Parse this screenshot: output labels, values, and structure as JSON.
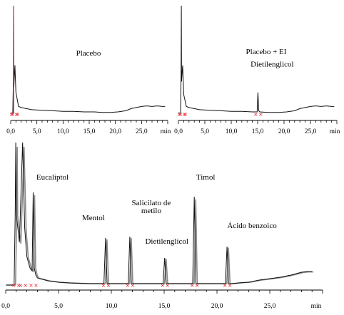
{
  "chart_data": [
    {
      "type": "line",
      "title": "Placebo",
      "xlabel": "min",
      "xlim": [
        0,
        30
      ],
      "xticks": [
        "0,0",
        "5,0",
        "10,0",
        "15,0",
        "20,0",
        "25,0"
      ],
      "series": [
        {
          "x": [
            0.0,
            0.4,
            0.5,
            0.55,
            0.6,
            0.8,
            1.0,
            1.5,
            2.0,
            3.0,
            4.0,
            6.0,
            8.0,
            10.0,
            12.0,
            14.0,
            16.0,
            17.5,
            19.0,
            20.5,
            22.0,
            23.0,
            24.0,
            25.0,
            26.0,
            27.0,
            28.0,
            29.0,
            29.5
          ],
          "y": [
            0.01,
            0.01,
            0.3,
            1.0,
            0.25,
            0.45,
            0.2,
            0.07,
            0.06,
            0.05,
            0.04,
            0.035,
            0.03,
            0.025,
            0.025,
            0.02,
            0.02,
            0.015,
            0.015,
            0.02,
            0.03,
            0.05,
            0.06,
            0.07,
            0.075,
            0.07,
            0.075,
            0.07,
            0.07
          ]
        }
      ],
      "annotations": []
    },
    {
      "type": "line",
      "title": "Placebo + EI",
      "xlabel": "min",
      "xlim": [
        0,
        30
      ],
      "xticks": [
        "0,0",
        "5,0",
        "10,0",
        "15,0",
        "20,0",
        "25,0"
      ],
      "series": [
        {
          "x": [
            0.0,
            0.4,
            0.5,
            0.55,
            0.6,
            0.8,
            1.0,
            1.5,
            2.0,
            3.0,
            4.0,
            6.0,
            8.0,
            10.0,
            12.0,
            14.0,
            14.9,
            15.05,
            15.2,
            15.4,
            17.0,
            19.0,
            20.5,
            22.0,
            23.0,
            24.0,
            25.0,
            26.0,
            27.0,
            28.0,
            29.0,
            29.5
          ],
          "y": [
            0.01,
            0.01,
            0.35,
            1.0,
            0.3,
            0.45,
            0.18,
            0.07,
            0.06,
            0.05,
            0.04,
            0.035,
            0.03,
            0.025,
            0.025,
            0.02,
            0.02,
            0.2,
            0.03,
            0.02,
            0.015,
            0.015,
            0.02,
            0.03,
            0.05,
            0.06,
            0.07,
            0.075,
            0.07,
            0.075,
            0.07,
            0.07
          ]
        }
      ],
      "annotations": [
        {
          "text": "Dietilenglicol",
          "x": 15.05,
          "y": 0.2
        }
      ]
    },
    {
      "type": "line",
      "title": "",
      "xlabel": "min",
      "xlim": [
        0,
        30
      ],
      "xticks": [
        "0,0",
        "5,0",
        "10,0",
        "15,0",
        "20,0",
        "25,0"
      ],
      "series": [
        {
          "x": [
            0.0,
            0.8,
            0.9,
            0.95,
            1.0,
            1.3,
            1.6,
            1.8,
            2.0,
            2.3,
            2.5,
            2.6,
            2.7,
            2.85,
            3.0,
            3.5,
            4.0,
            5.0,
            6.0,
            8.0,
            9.3,
            9.45,
            9.6,
            9.8,
            11.0,
            11.6,
            11.75,
            11.9,
            12.2,
            14.0,
            14.9,
            15.05,
            15.2,
            15.5,
            17.0,
            17.7,
            17.85,
            18.0,
            18.3,
            20.0,
            20.8,
            20.95,
            21.1,
            21.4,
            22.0,
            23.0,
            24.0,
            25.0,
            26.0,
            27.0,
            28.0,
            28.5,
            29.0
          ],
          "y": [
            0.0,
            0.0,
            0.5,
            1.0,
            0.5,
            0.3,
            1.0,
            0.4,
            0.2,
            0.12,
            0.1,
            0.65,
            0.12,
            0.07,
            0.05,
            0.04,
            0.03,
            0.02,
            0.015,
            0.01,
            0.01,
            0.33,
            0.01,
            0.01,
            0.01,
            0.01,
            0.34,
            0.01,
            0.01,
            0.01,
            0.01,
            0.19,
            0.01,
            0.01,
            0.01,
            0.01,
            0.62,
            0.01,
            0.01,
            0.01,
            0.01,
            0.27,
            0.01,
            0.01,
            0.015,
            0.02,
            0.035,
            0.045,
            0.055,
            0.07,
            0.09,
            0.095,
            0.095
          ]
        }
      ],
      "annotations": [
        {
          "text": "Eucaliptol",
          "x": 2.6,
          "y": 0.65
        },
        {
          "text": "Mentol",
          "x": 9.45,
          "y": 0.33
        },
        {
          "text": "Salicilato de metilo",
          "x": 11.75,
          "y": 0.34
        },
        {
          "text": "Dietilenglicol",
          "x": 15.05,
          "y": 0.19
        },
        {
          "text": "Timol",
          "x": 17.85,
          "y": 0.62
        },
        {
          "text": "Ácido benzoico",
          "x": 20.95,
          "y": 0.27
        }
      ]
    }
  ]
}
